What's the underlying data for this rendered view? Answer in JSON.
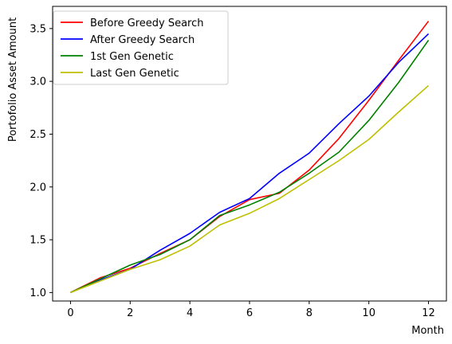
{
  "chart_data": {
    "type": "line",
    "title": "",
    "xlabel": "Month",
    "ylabel": "Portofolio Asset Amount",
    "xlim": [
      -0.6,
      12.6
    ],
    "ylim": [
      0.92,
      3.71
    ],
    "xticks": [
      0,
      2,
      4,
      6,
      8,
      10,
      12
    ],
    "yticks": [
      1.0,
      1.5,
      2.0,
      2.5,
      3.0,
      3.5
    ],
    "xtick_labels": [
      "0",
      "2",
      "4",
      "6",
      "8",
      "10",
      "12"
    ],
    "ytick_labels": [
      "1.0",
      "1.5",
      "2.0",
      "2.5",
      "3.0",
      "3.5"
    ],
    "grid": false,
    "legend_position": "top-left",
    "x": [
      0,
      1,
      2,
      3,
      4,
      5,
      6,
      7,
      8,
      9,
      10,
      11,
      12
    ],
    "series": [
      {
        "name": "Before Greedy Search",
        "color": "#ff0000",
        "values": [
          1.0,
          1.14,
          1.23,
          1.37,
          1.5,
          1.72,
          1.88,
          1.94,
          2.16,
          2.46,
          2.82,
          3.2,
          3.57
        ]
      },
      {
        "name": "After Greedy Search",
        "color": "#0000ff",
        "values": [
          1.0,
          1.12,
          1.22,
          1.4,
          1.56,
          1.76,
          1.89,
          2.13,
          2.32,
          2.6,
          2.86,
          3.18,
          3.45
        ]
      },
      {
        "name": "1st Gen Genetic",
        "color": "#008000",
        "values": [
          1.0,
          1.13,
          1.26,
          1.36,
          1.5,
          1.73,
          1.83,
          1.95,
          2.13,
          2.33,
          2.63,
          2.99,
          3.39
        ]
      },
      {
        "name": "Last Gen Genetic",
        "color": "#bfbf00",
        "values": [
          1.0,
          1.11,
          1.22,
          1.31,
          1.44,
          1.64,
          1.75,
          1.89,
          2.07,
          2.25,
          2.45,
          2.71,
          2.96
        ]
      }
    ]
  }
}
